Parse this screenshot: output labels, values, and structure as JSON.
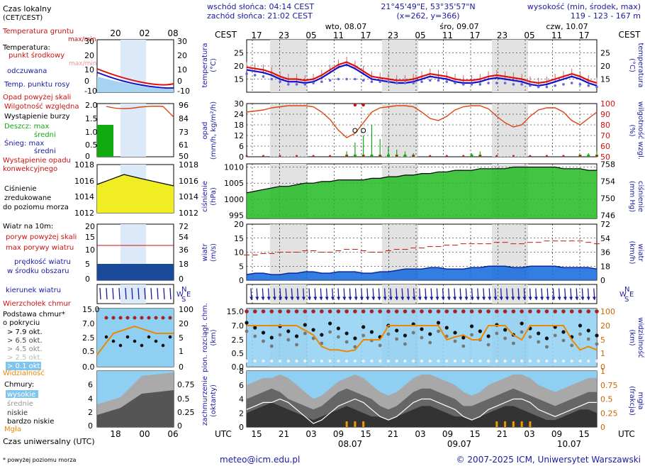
{
  "header": {
    "location_label": "Czas lokalny",
    "location_tz": "(CET/CEST)",
    "sunrise": "wschód słońca: 04:14 CEST",
    "sunset": "zachód słońca: 21:02 CEST",
    "coords": "21°45'49\"E, 53°35'57\"N",
    "grid": "(x=262, y=366)",
    "altitude_label": "wysokość (min, środek, max)",
    "altitude": "119 - 123 - 167 m"
  },
  "time_axis": {
    "top_label": "CEST",
    "bottom_label": "UTC",
    "days_top": [
      "wto, 08.07",
      "śro, 09.07",
      "czw, 10.07"
    ],
    "days_bottom": [
      "08.07",
      "09.07",
      "10.07"
    ],
    "top_hours": [
      "17",
      "23",
      "05",
      "11",
      "17",
      "23",
      "05",
      "11",
      "17",
      "23",
      "05",
      "11",
      "17"
    ],
    "bottom_hours": [
      "15",
      "21",
      "03",
      "09",
      "15",
      "21",
      "03",
      "09",
      "15",
      "21",
      "03",
      "09",
      "15"
    ],
    "legend_top_hours": [
      "20",
      "02",
      "08"
    ],
    "legend_bottom_hours": [
      "18",
      "00",
      "06"
    ]
  },
  "legend": {
    "temp_soil": "Temperatura gruntu",
    "temp_soil_sub": "max/min",
    "temp_title": "Temperatura:",
    "temp_mid": "punkt środkowy",
    "temp_maxmin": "max/min",
    "temp_felt": "odczuwana",
    "temp_dew": "Temp. punktu rosy",
    "precip_above": "Opad powyżej skali",
    "humidity": "Wilgotność względna",
    "storm": "Wystąpienie burzy",
    "rain_max": "Deszcz: max",
    "rain_mean": "średni",
    "snow_max": "Śnieg:   max",
    "snow_mean": "średni",
    "conv": "Wystąpienie opadu",
    "conv2": "konwekcyjnego",
    "pressure1": "Ciśnienie",
    "pressure2": "zredukowane",
    "pressure3": "do poziomu morza",
    "wind_title": "Wiatr na 10m:",
    "gust_above": "poryw powyżej skali",
    "gust_max": "max porywy wiatru",
    "wind_speed1": "prędkość wiatru",
    "wind_speed2": "w środku obszaru",
    "wind_dir": "kierunek wiatru",
    "cloud_top": "Wierzchołek chmur",
    "cloud_base1": "Podstawa chmur*",
    "cloud_base2": "o pokryciu",
    "okt1": "> 7.9 okt.",
    "okt2": "> 6.5 okt.",
    "okt3": "> 4.5 okt.",
    "okt4": "> 2.5 okt.",
    "okt5": "> 0.1 okt.",
    "visibility": "Widzialność",
    "clouds_title": "Chmury:",
    "cl_high": "wysokie",
    "cl_mid": "średnie",
    "cl_low": "niskie",
    "cl_vlow": "bardzo niskie",
    "fog": "Mgła",
    "utc_label": "Czas uniwersalny (UTC)",
    "footnote": "* powyżej poziomu morza"
  },
  "axis_labels": {
    "temp_left": "temperatura",
    "temp_left_unit": "(°C)",
    "temp_right": "temperatura",
    "temp_right_unit": "(°C)",
    "precip_left1": "opad",
    "precip_left2": "(mm/h, kg/m²/h)",
    "precip_right1": "wilgotność wzgl.",
    "precip_right2": "(%)",
    "press_left1": "ciśnienie",
    "press_left2": "(hPa)",
    "press_right1": "ciśnienie",
    "press_right2": "(mm Hg)",
    "wind_left1": "wiatr",
    "wind_left2": "(m/s)",
    "wind_right1": "wiatr",
    "wind_right2": "(km/h)",
    "cloud_left1": "pion. rozciągł. chm.",
    "cloud_left2": "(km)",
    "cloud_right1": "widzialność",
    "cloud_right2": "(km)",
    "cover_left1": "zachmurzenie",
    "cover_left2": "(oktanty)",
    "cover_right1": "mgła",
    "cover_right2": "(frakcja)"
  },
  "footer": {
    "email": "meteo@icm.edu.pl",
    "copyright": "© 2007-2025 ICM, Uniwersytet Warszawski"
  },
  "colors": {
    "temp": "#dd1111",
    "felt": "#1111cc",
    "dew": "#6666dd",
    "humidity": "#dd4411",
    "pressure_fill": "#22bb22",
    "wind_fill": "#1166dd",
    "visibility": "#ee8800",
    "label_blue": "#1a1aa0",
    "label_red": "#cc1111",
    "night_shade": "#e2e2e2"
  },
  "chart_data": [
    {
      "type": "line",
      "title": "temperatura",
      "ylabel": "(°C)",
      "ylim": [
        10,
        30
      ],
      "yticks": [
        15,
        20,
        25
      ],
      "series": [
        {
          "name": "punkt środkowy",
          "values": [
            19.5,
            19,
            18.5,
            17.5,
            16,
            15,
            15,
            14.5,
            15,
            16.5,
            18.5,
            20.5,
            21.5,
            20,
            18,
            16,
            15.5,
            15,
            14.5,
            14.5,
            15,
            16,
            17,
            16.5,
            16,
            15,
            14.5,
            14.5,
            15,
            16,
            16.5,
            16,
            15.5,
            15,
            14,
            13.5,
            14,
            15,
            16,
            17,
            16,
            14.5,
            13.5
          ]
        },
        {
          "name": "odczuwana",
          "values": [
            18.5,
            18,
            17.5,
            16.5,
            15,
            14,
            14,
            13.5,
            14,
            15.5,
            17.5,
            19.5,
            20.5,
            19,
            17,
            15,
            14.5,
            14,
            13.5,
            13.5,
            14,
            15,
            16,
            15.5,
            15,
            14,
            13.5,
            13.5,
            14,
            15,
            15.5,
            15,
            14.5,
            14,
            13,
            12.5,
            13,
            14,
            15,
            16,
            15,
            13.5,
            12.5
          ]
        },
        {
          "name": "Temp. punktu rosy",
          "values": [
            17,
            16.5,
            16,
            15,
            14,
            13,
            13,
            13,
            13.5,
            14,
            14.5,
            15,
            15,
            15,
            14.5,
            14,
            14,
            14,
            13.5,
            13.5,
            13.5,
            14,
            14.5,
            14.5,
            14,
            13.5,
            13,
            13,
            13,
            13.5,
            13.5,
            13.5,
            13,
            13,
            12.5,
            12,
            12,
            12.5,
            13,
            13.5,
            13,
            12.5,
            12
          ]
        }
      ]
    },
    {
      "type": "line",
      "title": "opad",
      "ylabel": "(mm/h, kg/m²/h)",
      "ylim": [
        0,
        30
      ],
      "yticks": [
        0,
        6,
        12,
        18,
        24,
        30
      ],
      "y2label": "wilgotność wzgl. (%)",
      "y2lim": [
        50,
        100
      ],
      "y2ticks": [
        50,
        60,
        70,
        80,
        90,
        100
      ],
      "series": [
        {
          "name": "Wilgotność względna",
          "values": [
            92,
            93,
            94,
            96,
            97,
            98,
            98,
            98,
            97,
            92,
            85,
            75,
            68,
            72,
            82,
            92,
            96,
            97,
            98,
            98,
            97,
            92,
            86,
            84,
            88,
            94,
            97,
            98,
            98,
            95,
            88,
            82,
            78,
            80,
            88,
            94,
            96,
            96,
            92,
            84,
            80,
            86,
            92
          ]
        }
      ]
    },
    {
      "type": "area",
      "title": "ciśnienie",
      "ylabel": "(hPa)",
      "ylim": [
        994,
        1011
      ],
      "yticks": [
        995,
        1000,
        1005,
        1010
      ],
      "y2label": "(mm Hg)",
      "y2ticks": [
        746,
        750,
        754,
        758
      ],
      "series": [
        {
          "name": "Ciśnienie",
          "values": [
            1002,
            1002.5,
            1003,
            1003.5,
            1004,
            1004,
            1004.5,
            1005,
            1005,
            1005.5,
            1005.5,
            1006,
            1006,
            1006,
            1006,
            1006.5,
            1006.5,
            1007,
            1007,
            1007.5,
            1007.5,
            1008,
            1008,
            1008.5,
            1008.5,
            1009,
            1009,
            1009,
            1009.5,
            1009.5,
            1009.5,
            1009.5,
            1010,
            1010,
            1010,
            1010,
            1010,
            1010,
            1009.5,
            1009.5,
            1009.5,
            1009,
            1009
          ]
        }
      ]
    },
    {
      "type": "area",
      "title": "wiatr",
      "ylabel": "(m/s)",
      "ylim": [
        0,
        20
      ],
      "yticks": [
        0,
        5,
        10,
        15,
        20
      ],
      "y2label": "(km/h)",
      "y2ticks": [
        0,
        18,
        36,
        54,
        72
      ],
      "series": [
        {
          "name": "prędkość wiatru",
          "values": [
            2,
            2.5,
            2.5,
            2,
            2,
            2.5,
            2.5,
            3,
            3,
            2.5,
            2.5,
            3,
            3,
            3,
            2.5,
            2.5,
            3,
            3,
            3.5,
            4,
            4,
            4,
            4.5,
            4.5,
            4,
            4,
            4,
            4.5,
            4.5,
            5,
            5,
            5,
            4.5,
            4.5,
            5,
            5,
            5,
            5,
            4.5,
            4.5,
            4.5,
            4.5,
            4
          ]
        },
        {
          "name": "max porywy wiatru",
          "values": [
            9,
            9,
            9.5,
            9.5,
            10,
            10,
            10,
            10.5,
            10.5,
            10,
            10,
            10.5,
            11,
            11,
            10.5,
            10,
            10,
            10.5,
            11,
            11,
            11.5,
            11.5,
            12,
            12,
            12.5,
            12.5,
            13,
            13,
            13,
            13,
            13.5,
            13.5,
            13,
            13,
            13.5,
            13.5,
            14,
            14,
            14,
            14,
            14,
            13.5,
            13
          ]
        }
      ]
    },
    {
      "type": "line",
      "title": "pion. rozciągł. chm.",
      "ylabel": "(km)",
      "ylim": [
        0,
        15
      ],
      "yticks": [
        0,
        0.5,
        2.5,
        7.0,
        15.0
      ],
      "y2label": "widzialność (km)",
      "y2ticks": [
        0,
        1,
        5,
        20,
        100
      ],
      "series": [
        {
          "name": "Widzialność",
          "values": [
            20,
            20,
            20,
            20,
            20,
            20,
            20,
            15,
            10,
            3,
            2,
            2,
            1.5,
            2,
            5,
            5,
            5,
            20,
            20,
            20,
            20,
            20,
            20,
            20,
            5,
            8,
            10,
            5,
            5,
            20,
            20,
            20,
            10,
            5,
            20,
            20,
            20,
            20,
            20,
            5,
            2,
            3,
            2
          ]
        }
      ]
    },
    {
      "type": "area",
      "title": "zachmurzenie",
      "ylabel": "(oktanty)",
      "ylim": [
        0,
        8
      ],
      "yticks": [
        0,
        2,
        4,
        6,
        8
      ],
      "y2label": "mgła (frakcja)",
      "y2ticks": [
        0,
        0.25,
        0.5,
        0.75,
        1
      ],
      "series": [
        {
          "name": "wysokie",
          "values": [
            6,
            6.5,
            7,
            7,
            7.5,
            7,
            6,
            5,
            4,
            4.5,
            5.5,
            6.5,
            7,
            7.5,
            7,
            6,
            5,
            4.5,
            5,
            6,
            7,
            7.5,
            7.5,
            7,
            6.5,
            6,
            5,
            4.5,
            5,
            6,
            6.5,
            7,
            7.5,
            7.5,
            7,
            6,
            5.5,
            5,
            5.5,
            6,
            6.5,
            7,
            7
          ]
        },
        {
          "name": "średnie",
          "values": [
            4,
            4.5,
            5,
            5.5,
            5,
            4,
            3.5,
            3,
            2.5,
            3,
            4,
            5,
            5.5,
            5,
            4.5,
            4,
            3,
            2.5,
            3,
            4,
            5,
            5.5,
            5.5,
            5,
            4.5,
            4,
            3,
            3,
            3.5,
            4,
            4.5,
            5,
            5.5,
            5,
            4.5,
            4,
            3.5,
            3,
            3.5,
            4,
            4.5,
            5,
            5
          ]
        },
        {
          "name": "niskie",
          "values": [
            2,
            2.5,
            3,
            3.5,
            3,
            2.5,
            2,
            1.5,
            1,
            1.5,
            2,
            2.5,
            3,
            2.5,
            2,
            1.5,
            1.5,
            1,
            1.5,
            2,
            2.5,
            3,
            3,
            2.5,
            2,
            1.5,
            1.5,
            1,
            1.5,
            2,
            2.5,
            3,
            3,
            2.5,
            2,
            1.5,
            1,
            1,
            1.5,
            2,
            2.5,
            2.5,
            2
          ]
        }
      ]
    }
  ]
}
